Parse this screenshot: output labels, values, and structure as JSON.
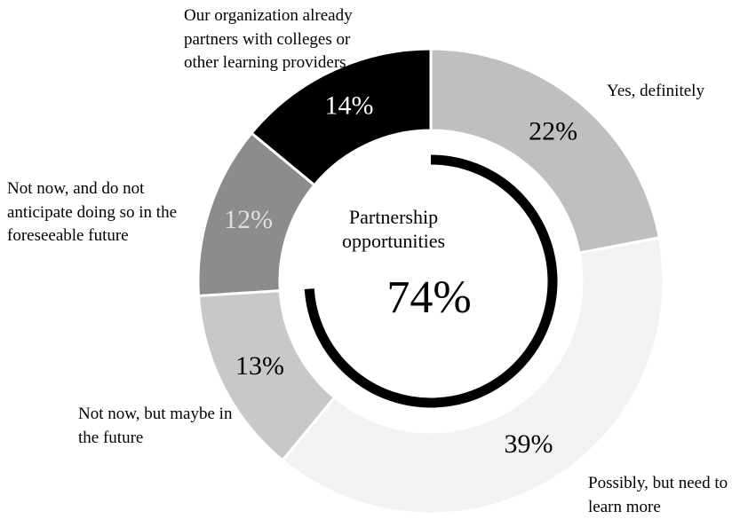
{
  "chart_data": {
    "type": "donut",
    "categories": [
      "Yes, definitely",
      "Possibly, but need to learn more",
      "Not now, but maybe in the future",
      "Not now, and do not anticipate doing so in the foreseeable future",
      "Our organization already partners with colleges or other learning providers"
    ],
    "values": [
      22,
      39,
      13,
      12,
      14
    ],
    "value_labels": [
      "22%",
      "39%",
      "13%",
      "12%",
      "14%"
    ],
    "colors": [
      "#bfbfbf",
      "#f2f2f2",
      "#c8c8c8",
      "#8c8c8c",
      "#000000"
    ],
    "label_colors": [
      "#000000",
      "#000000",
      "#000000",
      "#e0e0e0",
      "#ffffff"
    ],
    "center_title": "Partnership opportunities",
    "center_value": 74,
    "center_value_label": "74%"
  }
}
